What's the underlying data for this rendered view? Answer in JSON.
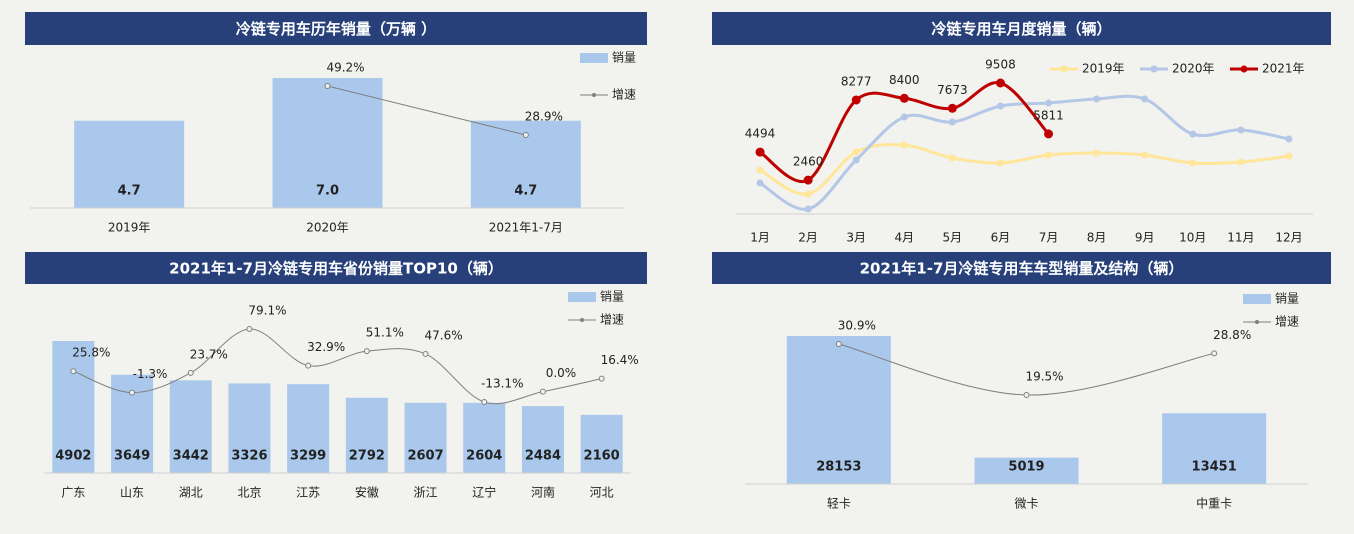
{
  "chart_data": [
    {
      "type": "bar",
      "title": "冷链专用车历年销量（万辆 ）",
      "legend": "right",
      "categories": [
        "2019年",
        "2020年",
        "2021年1-7月"
      ],
      "series": [
        {
          "name": "销量",
          "type": "bar",
          "color": "#a9c8ec",
          "data_labels": true,
          "values": [
            4.7,
            7.0,
            4.7
          ],
          "value_labels": [
            "4.7",
            "7.0",
            "4.7"
          ]
        },
        {
          "name": "增速",
          "type": "line",
          "color": "#7f7f7f",
          "data_labels": true,
          "values": [
            null,
            49.2,
            28.9
          ],
          "value_labels": [
            null,
            "49.2%",
            "28.9%"
          ]
        }
      ]
    },
    {
      "type": "line",
      "title": "冷链专用车月度销量（辆）",
      "legend": "top",
      "categories": [
        "1月",
        "2月",
        "3月",
        "4月",
        "5月",
        "6月",
        "7月",
        "8月",
        "9月",
        "10月",
        "11月",
        "12月"
      ],
      "series": [
        {
          "name": "2019年",
          "color": "#ffe699",
          "data_labels": false,
          "values": [
            3190,
            1446,
            4500,
            5000,
            4060,
            3700,
            4280,
            4430,
            4280,
            3700,
            3770,
            4200
          ]
        },
        {
          "name": "2020年",
          "color": "#b4c7e7",
          "data_labels": false,
          "values": [
            2250,
            360,
            3920,
            7040,
            6680,
            7840,
            8060,
            8350,
            8350,
            5800,
            6100,
            5440
          ]
        },
        {
          "name": "2021年",
          "color": "#c00000",
          "data_labels": true,
          "values": [
            4494,
            2460,
            8277,
            8400,
            7673,
            9508,
            5811,
            null,
            null,
            null,
            null,
            null
          ]
        }
      ]
    },
    {
      "type": "bar",
      "title": "2021年1-7月冷链专用车省份销量TOP10（辆）",
      "legend": "right",
      "categories": [
        "广东",
        "山东",
        "湖北",
        "北京",
        "江苏",
        "安徽",
        "浙江",
        "辽宁",
        "河南",
        "河北"
      ],
      "series": [
        {
          "name": "销量",
          "type": "bar",
          "color": "#a9c8ec",
          "data_labels": true,
          "values": [
            4902,
            3649,
            3442,
            3326,
            3299,
            2792,
            2607,
            2604,
            2484,
            2160
          ]
        },
        {
          "name": "增速",
          "type": "line",
          "color": "#7f7f7f",
          "data_labels": true,
          "values": [
            25.8,
            -1.3,
            23.7,
            79.1,
            32.9,
            51.1,
            47.6,
            -13.1,
            0.0,
            16.4
          ],
          "value_labels": [
            "25.8%",
            "-1.3%",
            "23.7%",
            "79.1%",
            "32.9%",
            "51.1%",
            "47.6%",
            "-13.1%",
            "0.0%",
            "16.4%"
          ]
        }
      ]
    },
    {
      "type": "bar",
      "title": "2021年1-7月冷链专用车车型销量及结构（辆）",
      "legend": "right",
      "categories": [
        "轻卡",
        "微卡",
        "中重卡"
      ],
      "series": [
        {
          "name": "销量",
          "type": "bar",
          "color": "#a9c8ec",
          "data_labels": true,
          "values": [
            28153,
            5019,
            13451
          ]
        },
        {
          "name": "增速",
          "type": "line",
          "color": "#7f7f7f",
          "data_labels": true,
          "values": [
            30.9,
            19.5,
            28.8
          ],
          "value_labels": [
            "30.9%",
            "19.5%",
            "28.8%"
          ]
        }
      ]
    }
  ]
}
